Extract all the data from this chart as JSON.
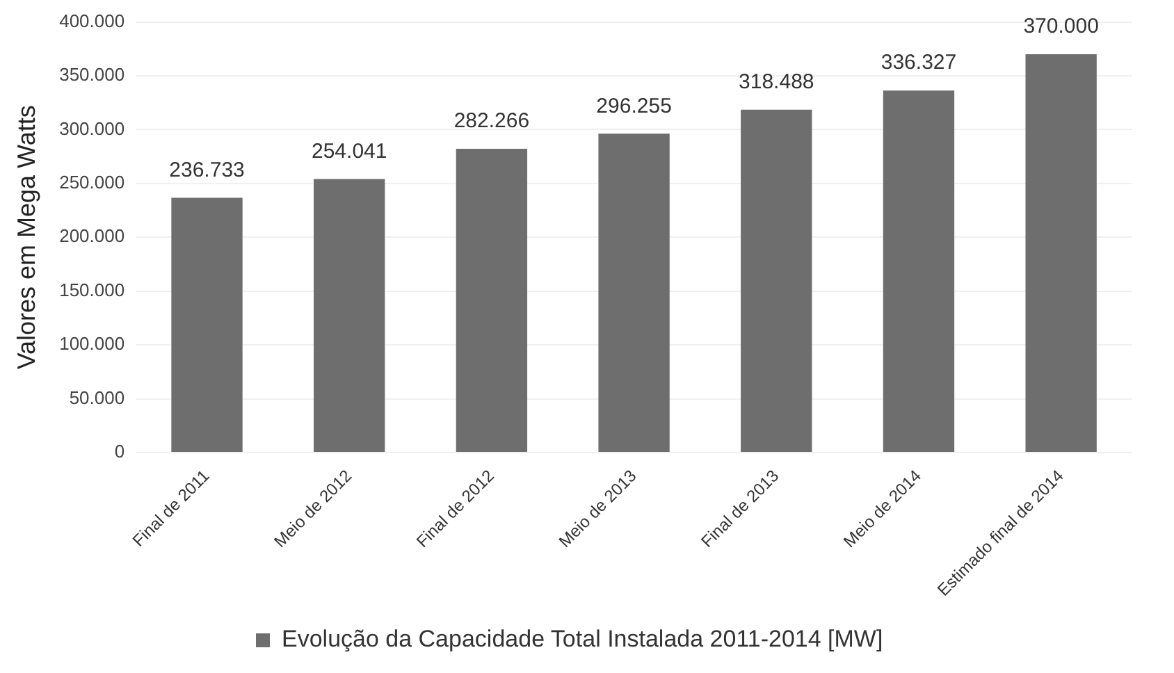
{
  "chart_data": {
    "type": "bar",
    "ylabel": "Valores em Mega Watts",
    "categories": [
      "Final de 2011",
      "Meio de 2012",
      "Final de 2012",
      "Meio de 2013",
      "Final de 2013",
      "Meio de 2014",
      "Estimado final de 2014"
    ],
    "series": [
      {
        "name": "Evolução da Capacidade Total Instalada 2011-2014 [MW]",
        "color": "#6e6e6e",
        "values": [
          236733,
          254041,
          282266,
          296255,
          318488,
          336327,
          370000
        ],
        "value_labels": [
          "236.733",
          "254.041",
          "282.266",
          "296.255",
          "318.488",
          "336.327",
          "370.000"
        ]
      }
    ],
    "ylim": [
      0,
      400000
    ],
    "yticks": [
      0,
      {
        "value": 50000,
        "label": "50.000"
      },
      {
        "value": 100000,
        "label": "100.000"
      },
      {
        "value": 150000,
        "label": "150.000"
      },
      {
        "value": 200000,
        "label": "200.000"
      },
      {
        "value": 250000,
        "label": "250.000"
      },
      {
        "value": 300000,
        "label": "300.000"
      },
      {
        "value": 350000,
        "label": "350.000"
      },
      {
        "value": 400000,
        "label": "400.000"
      }
    ],
    "grid": "y",
    "legend": "bottom"
  }
}
